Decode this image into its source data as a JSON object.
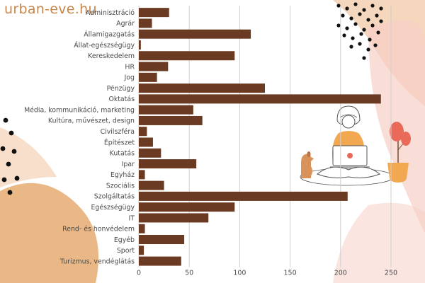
{
  "brand": {
    "text": "urban-eve.hu",
    "color": "#c8864a"
  },
  "colors": {
    "bar": "#6b3a22",
    "grid": "#cfcfcf",
    "blob_peach": "#f2c9a8",
    "blob_pink": "#f6cfc6",
    "blob_orange": "#e2a05e",
    "dots": "#111111",
    "accent_orange": "#f2a850",
    "accent_red": "#ea6a5a",
    "dog": "#d9935a"
  },
  "illustration": {
    "icon": "woman-with-laptop-and-dog-icon",
    "plant_icon": "potted-plant-icon"
  },
  "chart_data": {
    "type": "bar",
    "orientation": "horizontal",
    "categories": [
      "Adminisztráció",
      "Agrár",
      "Államigazgatás",
      "Állat-egészségügy",
      "Kereskedelem",
      "HR",
      "Jog",
      "Pénzügy",
      "Oktatás",
      "Média, kommunikáció, marketing",
      "Kultúra, művészet, design",
      "Civilszféra",
      "Építészet",
      "Kutatás",
      "Ipar",
      "Egyház",
      "Szociális",
      "Szolgáltatás",
      "Egészségügy",
      "IT",
      "Rend- és honvédelem",
      "Egyéb",
      "Sport",
      "Turizmus, vendéglátás"
    ],
    "values": [
      30,
      13,
      111,
      2,
      95,
      29,
      18,
      125,
      240,
      54,
      63,
      8,
      14,
      22,
      57,
      6,
      25,
      207,
      95,
      69,
      6,
      45,
      5,
      42
    ],
    "xlim": [
      0,
      262
    ],
    "xticks": [
      "0",
      "50",
      "100",
      "150",
      "200",
      "250"
    ],
    "xtick_values": [
      0,
      50,
      100,
      150,
      200,
      250
    ],
    "grid": "vertical",
    "title": "",
    "xlabel": "",
    "ylabel": ""
  }
}
